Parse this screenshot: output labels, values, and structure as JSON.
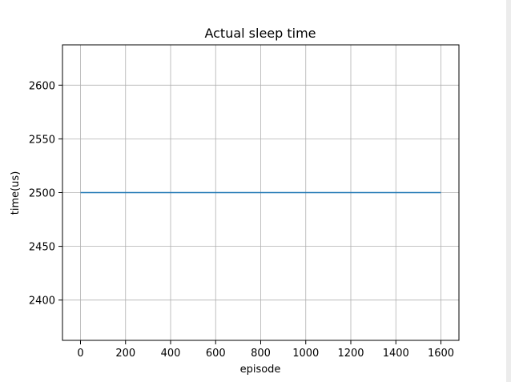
{
  "chart_data": {
    "type": "line",
    "title": "Actual sleep time",
    "xlabel": "episode",
    "ylabel": "time(us)",
    "xlim": [
      -80,
      1680
    ],
    "ylim": [
      2362.5,
      2637.5
    ],
    "xticks": [
      0,
      200,
      400,
      600,
      800,
      1000,
      1200,
      1400,
      1600
    ],
    "yticks": [
      2400,
      2450,
      2500,
      2550,
      2600
    ],
    "grid": true,
    "series": [
      {
        "color": "#1f77b4",
        "x": [
          0,
          1600
        ],
        "y": [
          2500,
          2500
        ]
      }
    ]
  }
}
